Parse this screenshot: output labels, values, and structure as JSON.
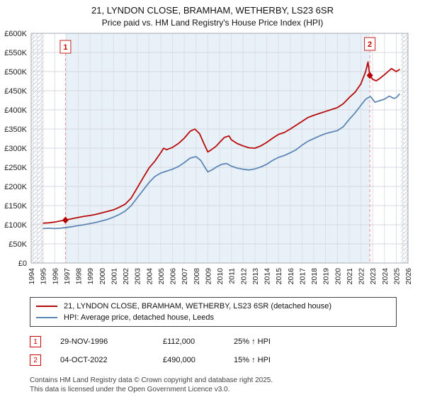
{
  "title": {
    "line1": "21, LYNDON CLOSE, BRAMHAM, WETHERBY, LS23 6SR",
    "line2": "Price paid vs. HM Land Registry's House Price Index (HPI)"
  },
  "chart_data": {
    "type": "line",
    "title": "Price paid vs. HM Land Registry's House Price Index (HPI)",
    "xlabel": "",
    "ylabel": "",
    "grid": true,
    "legend_position": "bottom",
    "x_range": [
      1994,
      2026
    ],
    "y_range": [
      0,
      600000
    ],
    "x_ticks": [
      1994,
      1995,
      1996,
      1997,
      1998,
      1999,
      2000,
      2001,
      2002,
      2003,
      2004,
      2005,
      2006,
      2007,
      2008,
      2009,
      2010,
      2011,
      2012,
      2013,
      2014,
      2015,
      2016,
      2017,
      2018,
      2019,
      2020,
      2021,
      2022,
      2023,
      2024,
      2025,
      2026
    ],
    "y_ticks": [
      {
        "value": 0,
        "label": "£0"
      },
      {
        "value": 50000,
        "label": "£50K"
      },
      {
        "value": 100000,
        "label": "£100K"
      },
      {
        "value": 150000,
        "label": "£150K"
      },
      {
        "value": 200000,
        "label": "£200K"
      },
      {
        "value": 250000,
        "label": "£250K"
      },
      {
        "value": 300000,
        "label": "£300K"
      },
      {
        "value": 350000,
        "label": "£350K"
      },
      {
        "value": 400000,
        "label": "£400K"
      },
      {
        "value": 450000,
        "label": "£450K"
      },
      {
        "value": 500000,
        "label": "£500K"
      },
      {
        "value": 550000,
        "label": "£550K"
      },
      {
        "value": 600000,
        "label": "£600K"
      }
    ],
    "shaded_region": {
      "from": 1996.91,
      "to": 2022.76,
      "color": "#e8f0f8"
    },
    "hatched_regions": [
      [
        1994,
        1995.05
      ],
      [
        2025.4,
        2026
      ]
    ],
    "series": [
      {
        "name": "21, LYNDON CLOSE, BRAMHAM, WETHERBY, LS23 6SR (detached house)",
        "color": "#b80b0b",
        "x": [
          1995.0,
          1995.5,
          1996.0,
          1996.5,
          1996.91,
          1997.5,
          1998.0,
          1998.5,
          1999.0,
          1999.5,
          2000.0,
          2000.5,
          2001.0,
          2001.5,
          2002.0,
          2002.5,
          2003.0,
          2003.5,
          2004.0,
          2004.5,
          2005.0,
          2005.25,
          2005.5,
          2006.0,
          2006.5,
          2007.0,
          2007.5,
          2007.9,
          2008.3,
          2008.7,
          2009.0,
          2009.3,
          2009.7,
          2010.0,
          2010.4,
          2010.8,
          2011.0,
          2011.5,
          2012.0,
          2012.5,
          2013.0,
          2013.5,
          2014.0,
          2014.5,
          2015.0,
          2015.5,
          2016.0,
          2016.5,
          2017.0,
          2017.5,
          2018.0,
          2018.5,
          2019.0,
          2019.5,
          2020.0,
          2020.5,
          2021.0,
          2021.5,
          2022.0,
          2022.4,
          2022.6,
          2022.76,
          2023.0,
          2023.3,
          2023.6,
          2024.0,
          2024.3,
          2024.6,
          2025.0,
          2025.3
        ],
        "values": [
          104000,
          105000,
          107000,
          110000,
          112000,
          116000,
          119000,
          122000,
          124000,
          127000,
          131000,
          135000,
          139000,
          146000,
          154000,
          170000,
          196000,
          222000,
          248000,
          266000,
          288000,
          300000,
          296000,
          302000,
          312000,
          326000,
          344000,
          350000,
          338000,
          310000,
          290000,
          296000,
          305000,
          315000,
          328000,
          332000,
          322000,
          312000,
          306000,
          301000,
          300000,
          306000,
          315000,
          326000,
          336000,
          341000,
          350000,
          360000,
          370000,
          380000,
          386000,
          391000,
          396000,
          401000,
          406000,
          416000,
          432000,
          446000,
          468000,
          500000,
          525000,
          490000,
          480000,
          476000,
          482000,
          492000,
          500000,
          508000,
          500000,
          506000
        ]
      },
      {
        "name": "HPI: Average price, detached house, Leeds",
        "color": "#5f87b5",
        "x": [
          1995.0,
          1995.5,
          1996.0,
          1996.5,
          1997.0,
          1997.5,
          1998.0,
          1998.5,
          1999.0,
          1999.5,
          2000.0,
          2000.5,
          2001.0,
          2001.5,
          2002.0,
          2002.5,
          2003.0,
          2003.5,
          2004.0,
          2004.5,
          2005.0,
          2005.5,
          2006.0,
          2006.5,
          2007.0,
          2007.5,
          2008.0,
          2008.4,
          2008.8,
          2009.0,
          2009.4,
          2009.8,
          2010.2,
          2010.6,
          2011.0,
          2011.5,
          2012.0,
          2012.5,
          2013.0,
          2013.5,
          2014.0,
          2014.5,
          2015.0,
          2015.5,
          2016.0,
          2016.5,
          2017.0,
          2017.5,
          2018.0,
          2018.5,
          2019.0,
          2019.5,
          2020.0,
          2020.5,
          2021.0,
          2021.5,
          2022.0,
          2022.4,
          2022.8,
          2023.2,
          2023.6,
          2024.0,
          2024.4,
          2024.8,
          2025.0,
          2025.3
        ],
        "values": [
          90000,
          91000,
          90000,
          91000,
          93000,
          95000,
          98000,
          100000,
          103000,
          106000,
          110000,
          114000,
          120000,
          127000,
          136000,
          150000,
          170000,
          190000,
          210000,
          226000,
          235000,
          240000,
          245000,
          252000,
          262000,
          274000,
          278000,
          268000,
          248000,
          238000,
          244000,
          252000,
          258000,
          260000,
          253000,
          248000,
          245000,
          243000,
          246000,
          251000,
          258000,
          268000,
          276000,
          281000,
          288000,
          296000,
          308000,
          318000,
          325000,
          332000,
          338000,
          342000,
          346000,
          356000,
          375000,
          392000,
          412000,
          428000,
          435000,
          420000,
          424000,
          428000,
          436000,
          430000,
          432000,
          442000
        ]
      }
    ],
    "markers": [
      {
        "label": "1",
        "x": 1996.91,
        "value": 112000,
        "date": "29-NOV-1996"
      },
      {
        "label": "2",
        "x": 2022.76,
        "value": 490000,
        "date": "04-OCT-2022"
      }
    ]
  },
  "legend": {
    "items": [
      {
        "label": "21, LYNDON CLOSE, BRAMHAM, WETHERBY, LS23 6SR (detached house)"
      },
      {
        "label": "HPI: Average price, detached house, Leeds"
      }
    ]
  },
  "sales": [
    {
      "num": "1",
      "date": "29-NOV-1996",
      "price": "£112,000",
      "hpi_change": "25% ↑ HPI"
    },
    {
      "num": "2",
      "date": "04-OCT-2022",
      "price": "£490,000",
      "hpi_change": "15% ↑ HPI"
    }
  ],
  "footer": {
    "line1": "Contains HM Land Registry data © Crown copyright and database right 2025.",
    "line2": "This data is licensed under the Open Government Licence v3.0."
  }
}
